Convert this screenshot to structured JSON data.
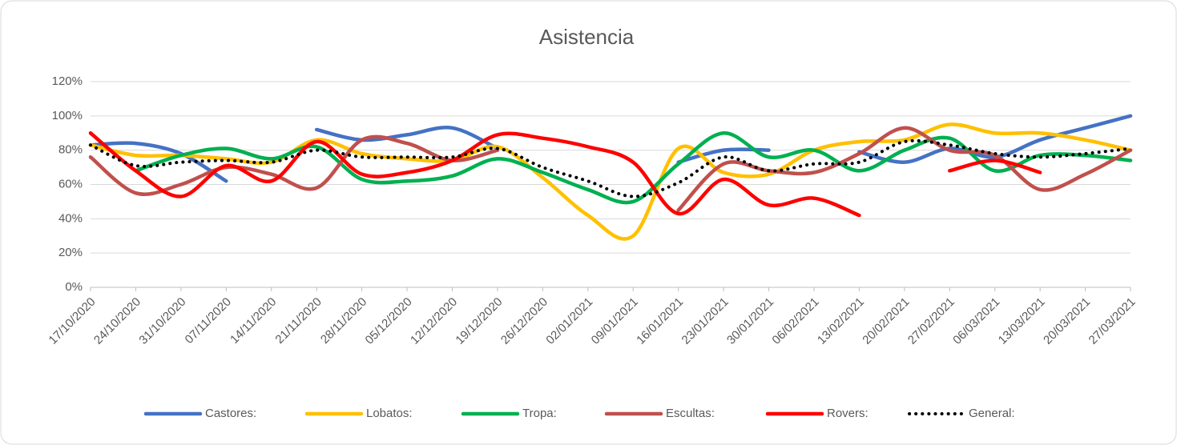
{
  "chart_data": {
    "type": "line",
    "title": "Asistencia",
    "categories": [
      "17/10/2020",
      "24/10/2020",
      "31/10/2020",
      "07/11/2020",
      "14/11/2020",
      "21/11/2020",
      "28/11/2020",
      "05/12/2020",
      "12/12/2020",
      "19/12/2020",
      "26/12/2020",
      "02/01/2021",
      "09/01/2021",
      "16/01/2021",
      "23/01/2021",
      "30/01/2021",
      "06/02/2021",
      "13/02/2021",
      "20/02/2021",
      "27/02/2021",
      "06/03/2021",
      "13/03/2021",
      "20/03/2021",
      "27/03/2021"
    ],
    "ylim": [
      0,
      120
    ],
    "yticks": [
      {
        "value": 0,
        "label": "0%"
      },
      {
        "value": 20,
        "label": "20%"
      },
      {
        "value": 40,
        "label": "40%"
      },
      {
        "value": 60,
        "label": "60%"
      },
      {
        "value": 80,
        "label": "80%"
      },
      {
        "value": 100,
        "label": "100%"
      },
      {
        "value": 120,
        "label": "120%"
      }
    ],
    "grid": true,
    "legend": "bottom",
    "smooth": true,
    "series": [
      {
        "name": "Castores:",
        "color": "#4472c4",
        "values": [
          83,
          84,
          78,
          62,
          null,
          92,
          86,
          89,
          93,
          81,
          null,
          null,
          null,
          73,
          80,
          80,
          null,
          79,
          73,
          81,
          76,
          86,
          93,
          100
        ]
      },
      {
        "name": "Lobatos:",
        "color": "#ffc000",
        "values": [
          83,
          77,
          77,
          75,
          73,
          86,
          78,
          75,
          74,
          82,
          64,
          42,
          30,
          81,
          67,
          66,
          80,
          85,
          86,
          95,
          90,
          90,
          86,
          80
        ]
      },
      {
        "name": "Tropa:",
        "color": "#00b050",
        "values": [
          null,
          68,
          77,
          81,
          75,
          82,
          63,
          62,
          65,
          75,
          67,
          57,
          50,
          72,
          90,
          76,
          80,
          68,
          80,
          87,
          68,
          77,
          77,
          74
        ]
      },
      {
        "name": "Escultas:",
        "color": "#c0504d",
        "values": [
          76,
          55,
          60,
          70,
          66,
          58,
          86,
          84,
          74,
          80,
          null,
          null,
          null,
          45,
          72,
          68,
          67,
          78,
          93,
          80,
          77,
          57,
          66,
          80
        ]
      },
      {
        "name": "Rovers:",
        "color": "#ff0000",
        "values": [
          90,
          68,
          53,
          71,
          62,
          85,
          66,
          67,
          74,
          89,
          87,
          82,
          73,
          43,
          63,
          48,
          52,
          42,
          null,
          68,
          74,
          67,
          null,
          null
        ]
      },
      {
        "name": "General:",
        "color": "#000000",
        "dotted": true,
        "values": [
          83,
          71,
          73,
          74,
          73,
          80,
          76,
          76,
          76,
          81,
          70,
          62,
          53,
          61,
          76,
          68,
          72,
          73,
          85,
          83,
          78,
          76,
          78,
          81
        ]
      }
    ]
  }
}
